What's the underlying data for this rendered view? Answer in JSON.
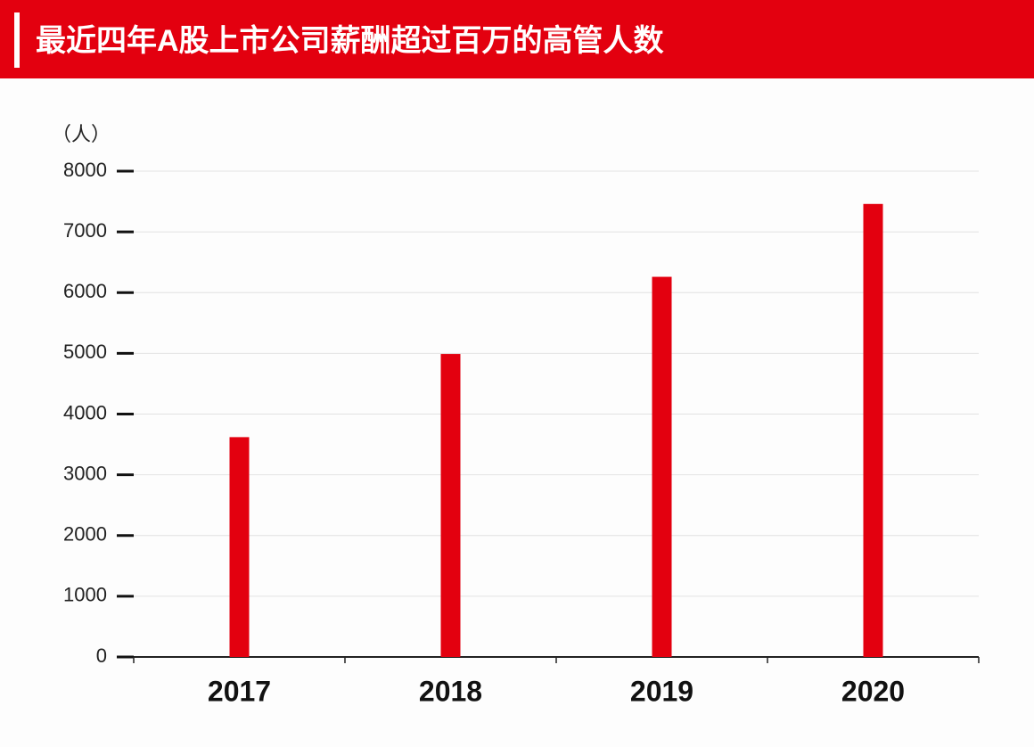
{
  "chart_data": {
    "type": "bar",
    "title": "最近四年A股上市公司薪酬超过百万的高管人数",
    "y_label": "（人）",
    "categories": [
      "2017",
      "2018",
      "2019",
      "2020"
    ],
    "values": [
      3620,
      4990,
      6260,
      7460
    ],
    "color": "#e3000f",
    "ylim": [
      0,
      8000
    ],
    "yticks": [
      0,
      1000,
      2000,
      3000,
      4000,
      5000,
      6000,
      7000,
      8000
    ],
    "grid": true
  }
}
